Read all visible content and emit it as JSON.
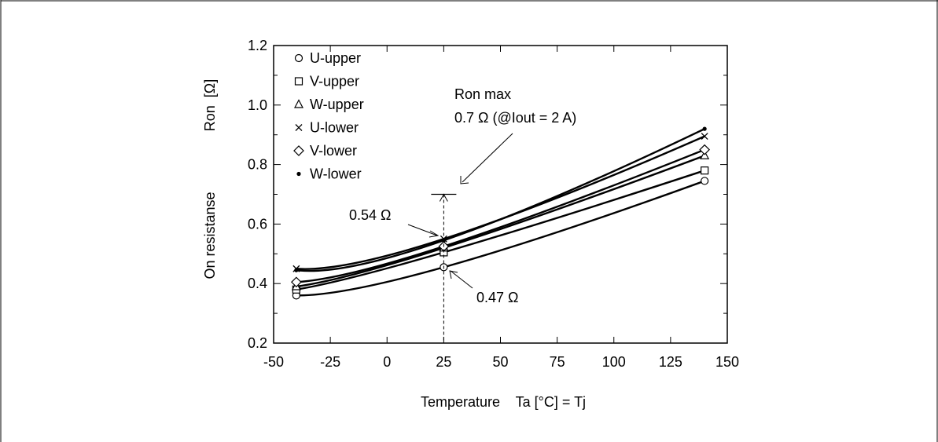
{
  "chart_data": {
    "type": "line",
    "xlabel": "Temperature    Ta [°C] = Tj",
    "ylabel_left": "On resistanse",
    "ylabel_right": "Ron  [Ω]",
    "xlim": [
      -50,
      150
    ],
    "ylim": [
      0.2,
      1.2
    ],
    "x_ticks": [
      "-50",
      "-25",
      "0",
      "25",
      "50",
      "75",
      "100",
      "125",
      "150"
    ],
    "y_ticks": [
      "0.2",
      "0.4",
      "0.6",
      "0.8",
      "1.0",
      "1.2"
    ],
    "x": [
      -40,
      25,
      140
    ],
    "series": [
      {
        "name": "U-upper",
        "marker": "○",
        "values": [
          0.36,
          0.455,
          0.745
        ]
      },
      {
        "name": "V-upper",
        "marker": "□",
        "values": [
          0.38,
          0.505,
          0.78
        ]
      },
      {
        "name": "W-upper",
        "marker": "△",
        "values": [
          0.39,
          0.52,
          0.83
        ]
      },
      {
        "name": "U-lower",
        "marker": "×",
        "values": [
          0.45,
          0.55,
          0.895
        ]
      },
      {
        "name": "V-lower",
        "marker": "◇",
        "values": [
          0.405,
          0.525,
          0.85
        ]
      },
      {
        "name": "W-lower",
        "marker": "•",
        "values": [
          0.445,
          0.545,
          0.92
        ]
      }
    ],
    "annotations": {
      "ron_max_line1": "Ron max",
      "ron_max_line2": "0.7 Ω (@Iout = 2 A)",
      "ron_max_value": 0.7,
      "ron_max_x": 25,
      "label_054": "0.54 Ω",
      "label_047": "0.47 Ω"
    },
    "grid": false,
    "legend_position": "top-left"
  }
}
